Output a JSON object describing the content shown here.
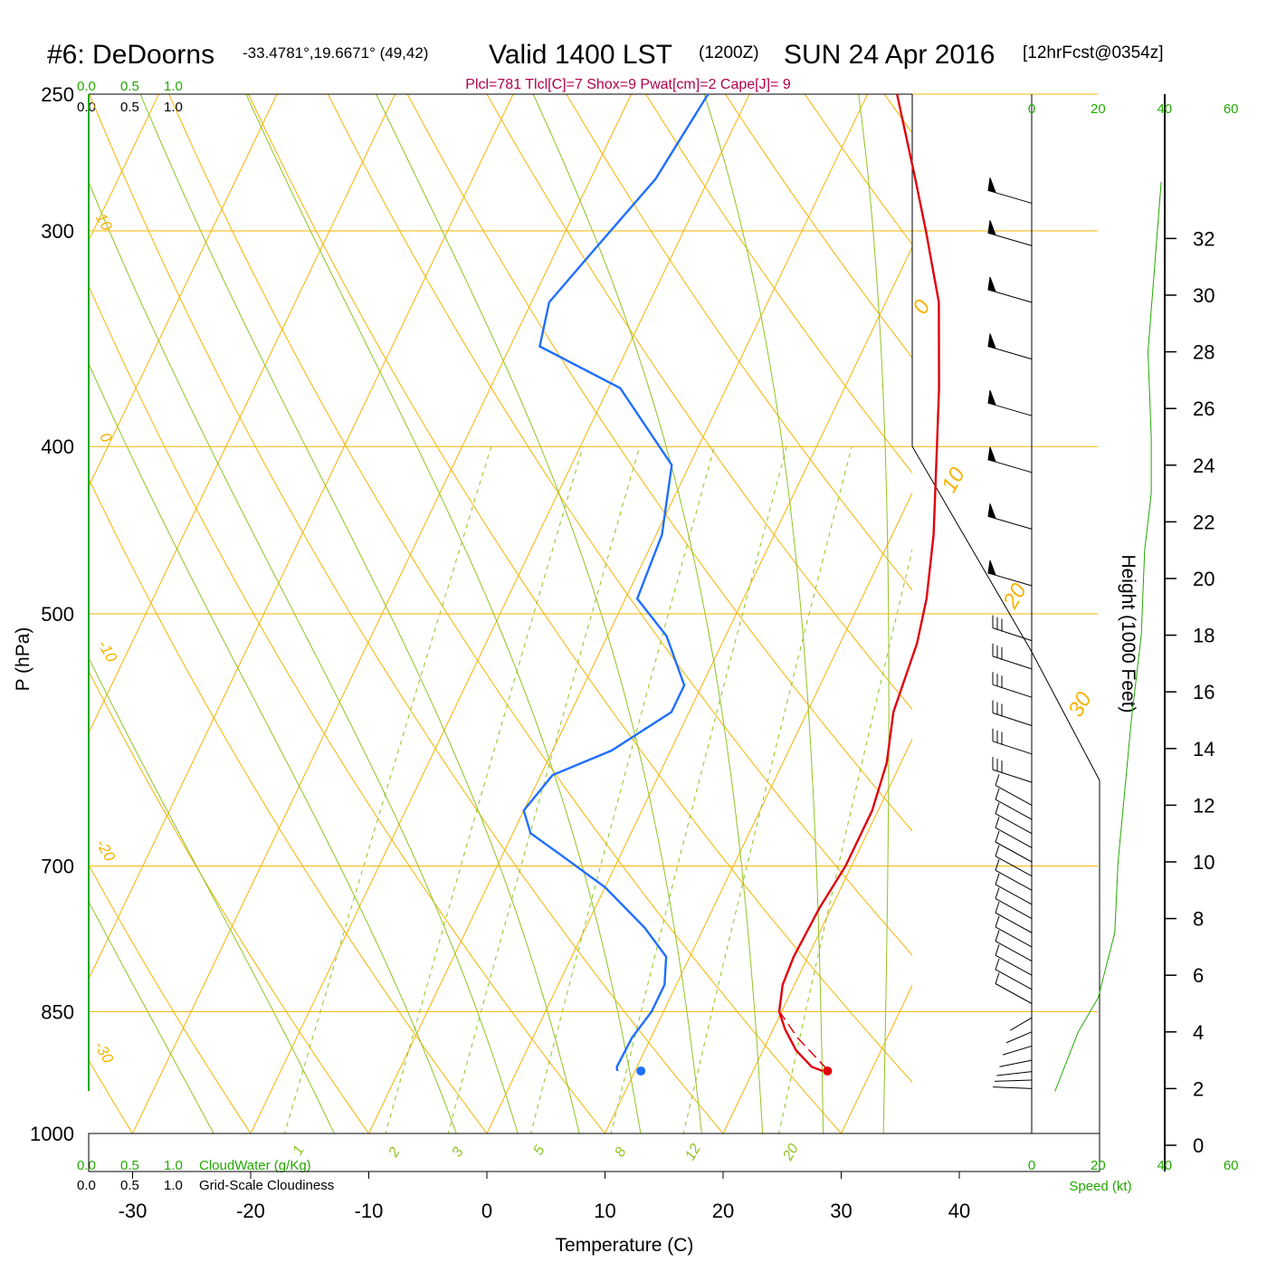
{
  "header": {
    "station": "#6: DeDoorns",
    "coords": "-33.4781°,19.6671° (49,42)",
    "valid": "Valid 1400 LST",
    "utc": "(1200Z)",
    "date": "SUN 24 Apr 2016",
    "forecast": "[12hrFcst@0354z]",
    "params": "Plcl=781 Tlcl[C]=7 Shox=9 Pwat[cm]=2 Cape[J]= 9"
  },
  "colors": {
    "temperature": "#e0000b",
    "dewpoint": "#1f6fff",
    "isotherm": "#f5b400",
    "dry_adiabat": "#f5b400",
    "moist_adiabat": "#8fc321",
    "mixing_ratio": "#8fc321",
    "green_axis": "#22a800",
    "params": "#b0004a"
  },
  "legend": {
    "top_green": [
      "0.0",
      "0.5",
      "1.0"
    ],
    "top_black": [
      "0.0",
      "0.5",
      "1.0"
    ],
    "bottom_green": [
      "0.0",
      "0.5",
      "1.0"
    ],
    "bottom_green_label": "CloudWater (g/Kg)",
    "bottom_black": [
      "0.0",
      "0.5",
      "1.0"
    ],
    "bottom_black_label": "Grid-Scale Cloudiness",
    "speed_ticks": [
      "0",
      "20",
      "40",
      "60"
    ],
    "speed_label": "Speed (kt)"
  },
  "chart_data": {
    "type": "line",
    "title": "#6: DeDoorns Valid 1400 LST (1200Z) SUN 24 Apr 2016",
    "xlabel": "Temperature (C)",
    "ylabel": "P (hPa)",
    "y2label": "Height (1000 Feet)",
    "pressure_ticks": [
      "250",
      "300",
      "400",
      "500",
      "700",
      "850",
      "1000"
    ],
    "temperature_ticks": [
      "-30",
      "-20",
      "-10",
      "0",
      "10",
      "20",
      "30",
      "40"
    ],
    "height_ticks": [
      "0",
      "2",
      "4",
      "6",
      "8",
      "10",
      "12",
      "14",
      "16",
      "18",
      "20",
      "22",
      "24",
      "26",
      "28",
      "30",
      "32"
    ],
    "isotherm_labels": [
      "10",
      "0",
      "-10",
      "-20",
      "-30",
      "0",
      "10",
      "20",
      "30"
    ],
    "mixing_ratio_labels": [
      "1",
      "2",
      "3",
      "5",
      "8",
      "12",
      "20"
    ],
    "series": [
      {
        "name": "Temperature",
        "points": [
          {
            "p": 920,
            "t": 25.9
          },
          {
            "p": 915,
            "t": 24.8
          },
          {
            "p": 895,
            "t": 22.8
          },
          {
            "p": 870,
            "t": 21.0
          },
          {
            "p": 850,
            "t": 19.8
          },
          {
            "p": 820,
            "t": 19.0
          },
          {
            "p": 790,
            "t": 18.8
          },
          {
            "p": 740,
            "t": 19.0
          },
          {
            "p": 700,
            "t": 19.5
          },
          {
            "p": 650,
            "t": 19.5
          },
          {
            "p": 610,
            "t": 18.8
          },
          {
            "p": 570,
            "t": 17.3
          },
          {
            "p": 520,
            "t": 16.5
          },
          {
            "p": 490,
            "t": 15.5
          },
          {
            "p": 450,
            "t": 13.5
          },
          {
            "p": 400,
            "t": 10.2
          },
          {
            "p": 370,
            "t": 8.0
          },
          {
            "p": 330,
            "t": 4.5
          },
          {
            "p": 300,
            "t": 0.5
          },
          {
            "p": 280,
            "t": -2.5
          },
          {
            "p": 250,
            "t": -7.5
          }
        ]
      },
      {
        "name": "Dewpoint",
        "points": [
          {
            "p": 920,
            "t": 8.5
          },
          {
            "p": 915,
            "t": 8.3
          },
          {
            "p": 880,
            "t": 8.4
          },
          {
            "p": 850,
            "t": 9.0
          },
          {
            "p": 820,
            "t": 9.0
          },
          {
            "p": 790,
            "t": 8.0
          },
          {
            "p": 760,
            "t": 5.0
          },
          {
            "p": 720,
            "t": 0.0
          },
          {
            "p": 690,
            "t": -5.0
          },
          {
            "p": 670,
            "t": -8.5
          },
          {
            "p": 650,
            "t": -10.0
          },
          {
            "p": 620,
            "t": -9.0
          },
          {
            "p": 600,
            "t": -5.0
          },
          {
            "p": 570,
            "t": -1.5
          },
          {
            "p": 550,
            "t": -1.5
          },
          {
            "p": 515,
            "t": -5.0
          },
          {
            "p": 490,
            "t": -9.0
          },
          {
            "p": 450,
            "t": -9.5
          },
          {
            "p": 410,
            "t": -11.5
          },
          {
            "p": 370,
            "t": -19.0
          },
          {
            "p": 350,
            "t": -27.5
          },
          {
            "p": 330,
            "t": -28.5
          },
          {
            "p": 310,
            "t": -27.0
          },
          {
            "p": 280,
            "t": -24.5
          },
          {
            "p": 250,
            "t": -23.5
          }
        ]
      },
      {
        "name": "Parcel",
        "points": [
          {
            "p": 918,
            "t": 26.2
          },
          {
            "p": 880,
            "t": 22.4
          },
          {
            "p": 852,
            "t": 20.0
          }
        ]
      }
    ],
    "surface_points": [
      {
        "name": "surface temperature",
        "p": 920,
        "t": 26.3
      },
      {
        "name": "surface dewpoint",
        "p": 920,
        "t": 10.5
      }
    ],
    "wind_speed_profile_kt": [
      {
        "h_kft": 1.9,
        "spd": 7
      },
      {
        "h_kft": 4.0,
        "spd": 14
      },
      {
        "h_kft": 5.2,
        "spd": 20
      },
      {
        "h_kft": 7.5,
        "spd": 25
      },
      {
        "h_kft": 10.0,
        "spd": 26
      },
      {
        "h_kft": 12.5,
        "spd": 28
      },
      {
        "h_kft": 15.0,
        "spd": 30
      },
      {
        "h_kft": 18.0,
        "spd": 33
      },
      {
        "h_kft": 21.0,
        "spd": 34
      },
      {
        "h_kft": 23.0,
        "spd": 36
      },
      {
        "h_kft": 25.0,
        "spd": 36
      },
      {
        "h_kft": 28.0,
        "spd": 35
      },
      {
        "h_kft": 31.0,
        "spd": 37
      },
      {
        "h_kft": 34.0,
        "spd": 39
      }
    ],
    "wind_barb_heights_kft": [
      2,
      2.3,
      2.6,
      3,
      3.5,
      4,
      4.5,
      5,
      5.5,
      6,
      6.5,
      7,
      7.5,
      8,
      8.5,
      9,
      9.5,
      10,
      10.5,
      11,
      11.5,
      12,
      13,
      14,
      15,
      16,
      17,
      18,
      20,
      22,
      24,
      26,
      28,
      30,
      32,
      33.5
    ]
  }
}
